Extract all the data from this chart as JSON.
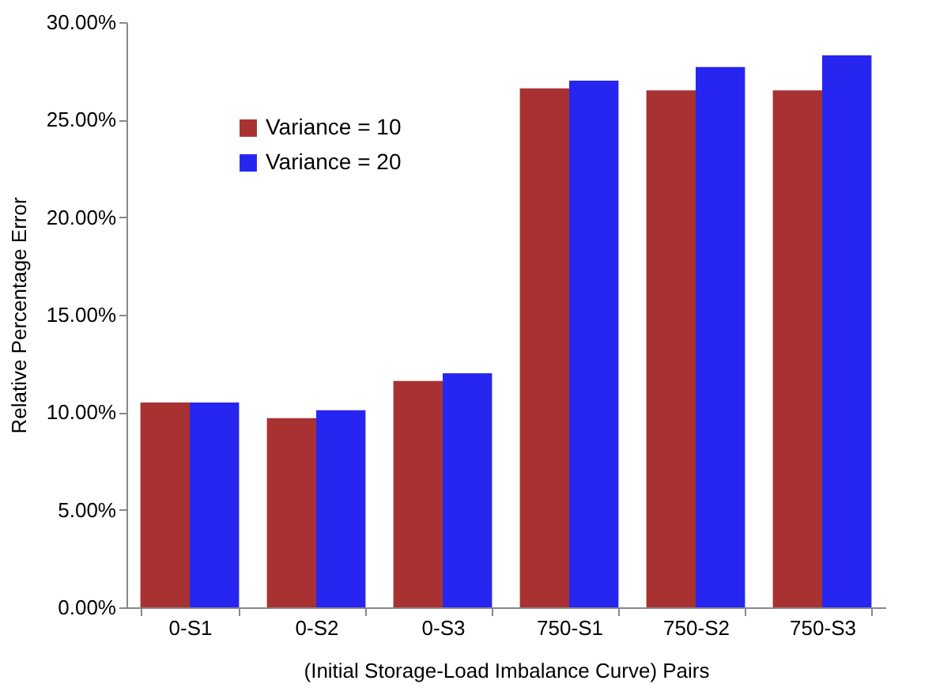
{
  "chart_data": {
    "type": "bar",
    "xlabel": "(Initial Storage-Load Imbalance Curve) Pairs",
    "ylabel": "Relative Percentage Error",
    "categories": [
      "0-S1",
      "0-S2",
      "0-S3",
      "750-S1",
      "750-S2",
      "750-S3"
    ],
    "series": [
      {
        "name": "Variance = 10",
        "color": "#a83232",
        "values": [
          10.5,
          9.7,
          11.6,
          26.6,
          26.5,
          26.5
        ]
      },
      {
        "name": "Variance = 20",
        "color": "#2626f0",
        "values": [
          10.5,
          10.1,
          12.0,
          27.0,
          27.7,
          28.3
        ]
      }
    ],
    "ylim": [
      0,
      30
    ],
    "yticks": [
      {
        "value": 0,
        "label": "0.00%"
      },
      {
        "value": 5,
        "label": "5.00%"
      },
      {
        "value": 10,
        "label": "10.00%"
      },
      {
        "value": 15,
        "label": "15.00%"
      },
      {
        "value": 20,
        "label": "20.00%"
      },
      {
        "value": 25,
        "label": "25.00%"
      },
      {
        "value": 30,
        "label": "30.00%"
      }
    ],
    "grid": false,
    "legend": "top left"
  }
}
